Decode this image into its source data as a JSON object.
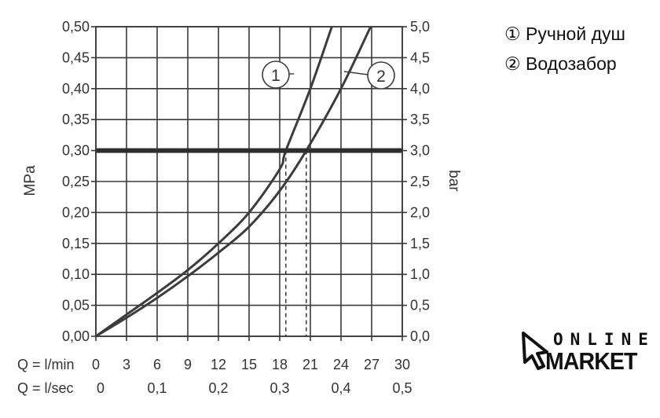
{
  "chart_data": {
    "type": "line",
    "left_axis": {
      "label": "MPa",
      "ticks": [
        "0,00",
        "0,05",
        "0,10",
        "0,15",
        "0,20",
        "0,25",
        "0,30",
        "0,35",
        "0,40",
        "0,45",
        "0,50"
      ],
      "range": [
        0,
        0.5
      ]
    },
    "right_axis": {
      "label": "bar",
      "ticks": [
        "0,0",
        "0,5",
        "1,0",
        "1,5",
        "2,0",
        "2,5",
        "3,0",
        "3,5",
        "4,0",
        "4,5",
        "5,0"
      ],
      "range": [
        0,
        5
      ]
    },
    "x_axis_lmin": {
      "label": "Q = l/min",
      "ticks": [
        "0",
        "3",
        "6",
        "9",
        "12",
        "15",
        "18",
        "21",
        "24",
        "27",
        "30"
      ],
      "range": [
        0,
        30
      ]
    },
    "x_axis_lsec": {
      "label": "Q = l/sec",
      "ticks": [
        "0",
        "0,1",
        "0,2",
        "0,3",
        "0,4",
        "0,5"
      ]
    },
    "series": [
      {
        "marker": "1",
        "x": [
          0,
          3,
          6,
          9,
          12,
          15,
          18,
          18.6,
          21,
          23.1
        ],
        "y": [
          0,
          0.035,
          0.07,
          0.107,
          0.15,
          0.2,
          0.27,
          0.3,
          0.4,
          0.5
        ]
      },
      {
        "marker": "2",
        "x": [
          0,
          3,
          6,
          9,
          12,
          15,
          18,
          20.6,
          24,
          26.9
        ],
        "y": [
          0,
          0.03,
          0.062,
          0.097,
          0.135,
          0.177,
          0.235,
          0.3,
          0.4,
          0.5
        ]
      }
    ],
    "reference_line": {
      "y": 0.3
    },
    "dashed_drops": [
      18.6,
      20.6
    ],
    "grid": true
  },
  "legend": [
    {
      "marker": "①",
      "label": "Ручной душ"
    },
    {
      "marker": "②",
      "label": "Водозабор"
    }
  ],
  "logo": {
    "line1": "ONLINE",
    "line2": "MARKET"
  }
}
